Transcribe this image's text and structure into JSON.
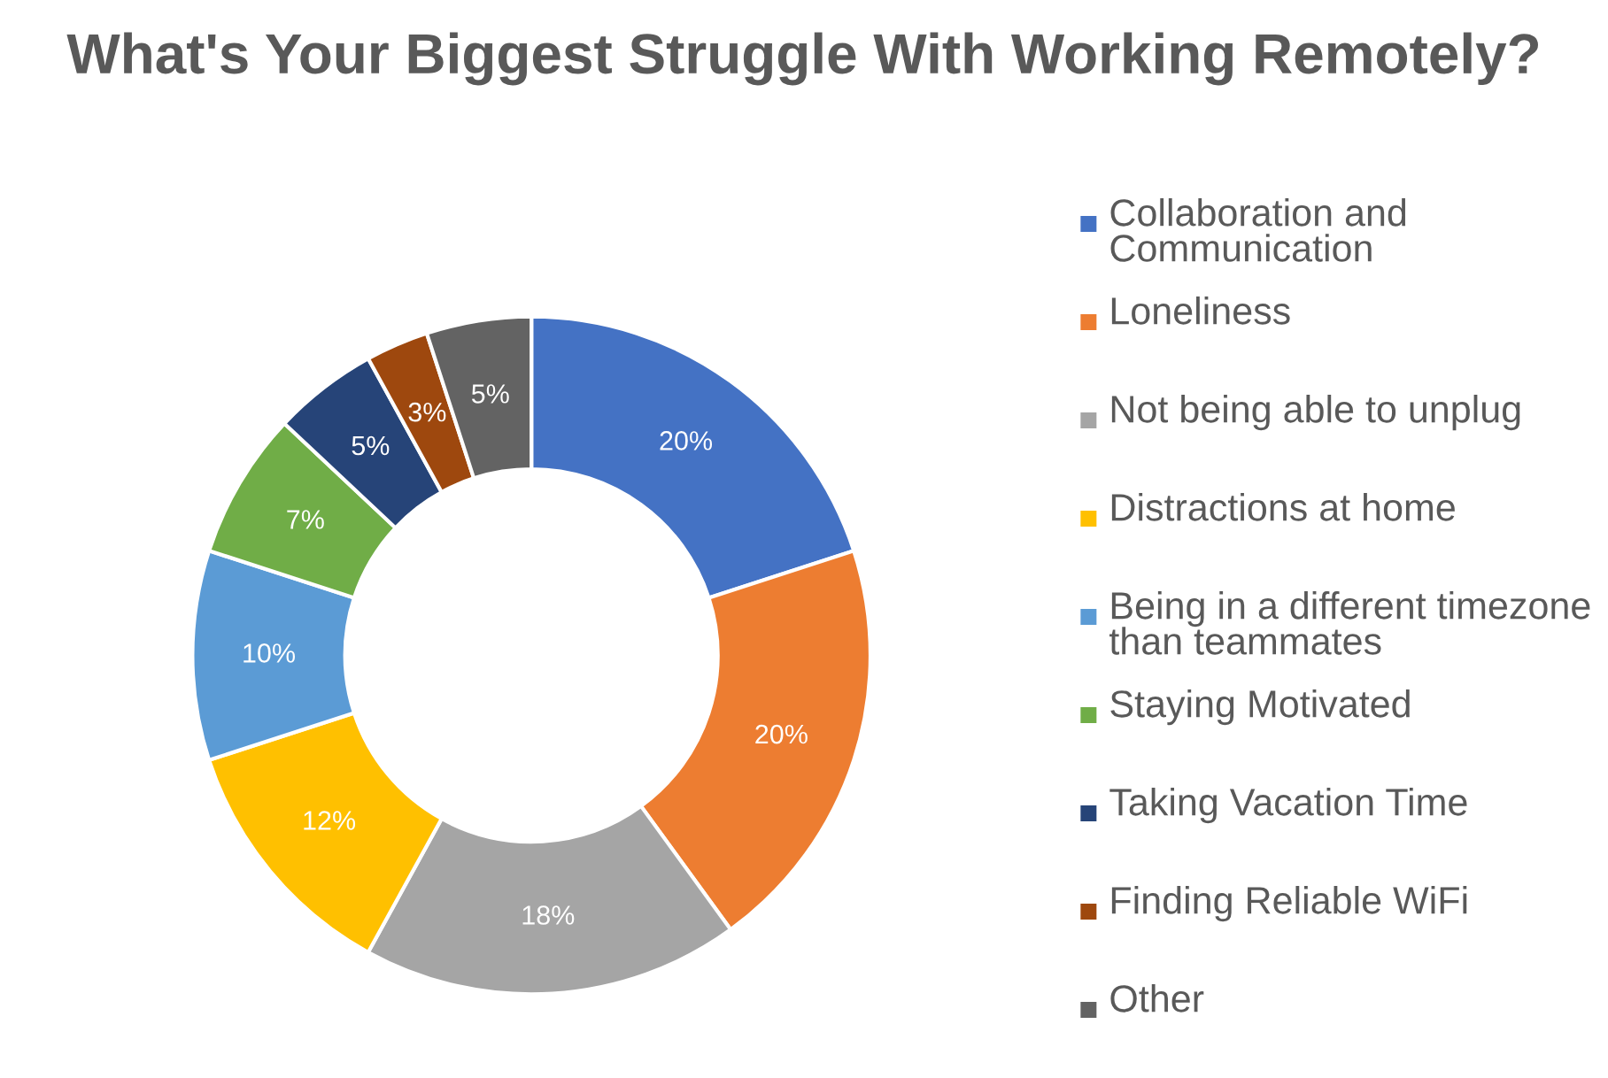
{
  "chart_data": {
    "type": "donut",
    "title": "What's Your Biggest Struggle With Working Remotely?",
    "categories": [
      "Collaboration and Communication",
      "Loneliness",
      "Not being able to unplug",
      "Distractions at home",
      "Being in a different timezone than teammates",
      "Staying Motivated",
      "Taking Vacation Time",
      "Finding Reliable WiFi",
      "Other"
    ],
    "values": [
      20,
      20,
      18,
      12,
      10,
      7,
      5,
      3,
      5
    ],
    "colors": [
      "#4472c4",
      "#ed7d31",
      "#a5a5a5",
      "#ffc000",
      "#5b9bd5",
      "#70ad47",
      "#264478",
      "#9e480e",
      "#636363"
    ],
    "value_labels": [
      "20%",
      "20%",
      "18%",
      "12%",
      "10%",
      "7%",
      "5%",
      "3%",
      "5%"
    ],
    "legend": "right"
  }
}
